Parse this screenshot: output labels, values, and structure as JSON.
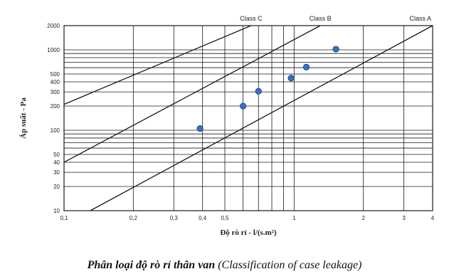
{
  "caption": {
    "main": "Phân loại độ rò rỉ thân van",
    "sub": "(Classification of case leakage)"
  },
  "colors": {
    "background": "#ffffff",
    "grid": "#1a1a1a",
    "axis_text": "#222222",
    "point": "#3a6fbf",
    "point_edge": "#1f3f7a"
  },
  "chart_data": {
    "type": "scatter",
    "xscale": "log",
    "yscale": "log",
    "xlabel": "Độ rò rỉ - l/(s.m²)",
    "ylabel": "Áp suất - Pa",
    "xlim": [
      0.1,
      4
    ],
    "ylim": [
      10,
      2000
    ],
    "xticks": [
      {
        "v": 0.1,
        "label": "0,1"
      },
      {
        "v": 0.2,
        "label": "0,2"
      },
      {
        "v": 0.3,
        "label": "0,3"
      },
      {
        "v": 0.4,
        "label": "0,4"
      },
      {
        "v": 0.5,
        "label": "0,5"
      },
      {
        "v": 1,
        "label": "1"
      },
      {
        "v": 2,
        "label": "2"
      },
      {
        "v": 3,
        "label": "3"
      },
      {
        "v": 4,
        "label": "4"
      }
    ],
    "yticks": [
      {
        "v": 10,
        "label": "10"
      },
      {
        "v": 20,
        "label": "20"
      },
      {
        "v": 30,
        "label": "30"
      },
      {
        "v": 40,
        "label": "40"
      },
      {
        "v": 50,
        "label": "50"
      },
      {
        "v": 100,
        "label": "100"
      },
      {
        "v": 200,
        "label": "200"
      },
      {
        "v": 300,
        "label": "300"
      },
      {
        "v": 400,
        "label": "400"
      },
      {
        "v": 500,
        "label": "500"
      },
      {
        "v": 1000,
        "label": "1000"
      },
      {
        "v": 2000,
        "label": "2000"
      }
    ],
    "x_minor_grid": [
      0.6,
      0.7,
      0.8,
      0.9
    ],
    "y_extra_grid": [
      60,
      70,
      80,
      90,
      600,
      700,
      800,
      900
    ],
    "class_lines": [
      {
        "name": "Class C",
        "points": [
          [
            0.1,
            210
          ],
          [
            0.65,
            2000
          ]
        ]
      },
      {
        "name": "Class B",
        "points": [
          [
            0.1,
            40
          ],
          [
            1.3,
            2000
          ]
        ]
      },
      {
        "name": "Class A",
        "points": [
          [
            0.13,
            10
          ],
          [
            4,
            2000
          ]
        ]
      }
    ],
    "points": [
      {
        "x": 0.39,
        "y": 105
      },
      {
        "x": 0.6,
        "y": 200
      },
      {
        "x": 0.7,
        "y": 305
      },
      {
        "x": 0.97,
        "y": 445
      },
      {
        "x": 1.13,
        "y": 610
      },
      {
        "x": 1.52,
        "y": 1020
      }
    ]
  }
}
